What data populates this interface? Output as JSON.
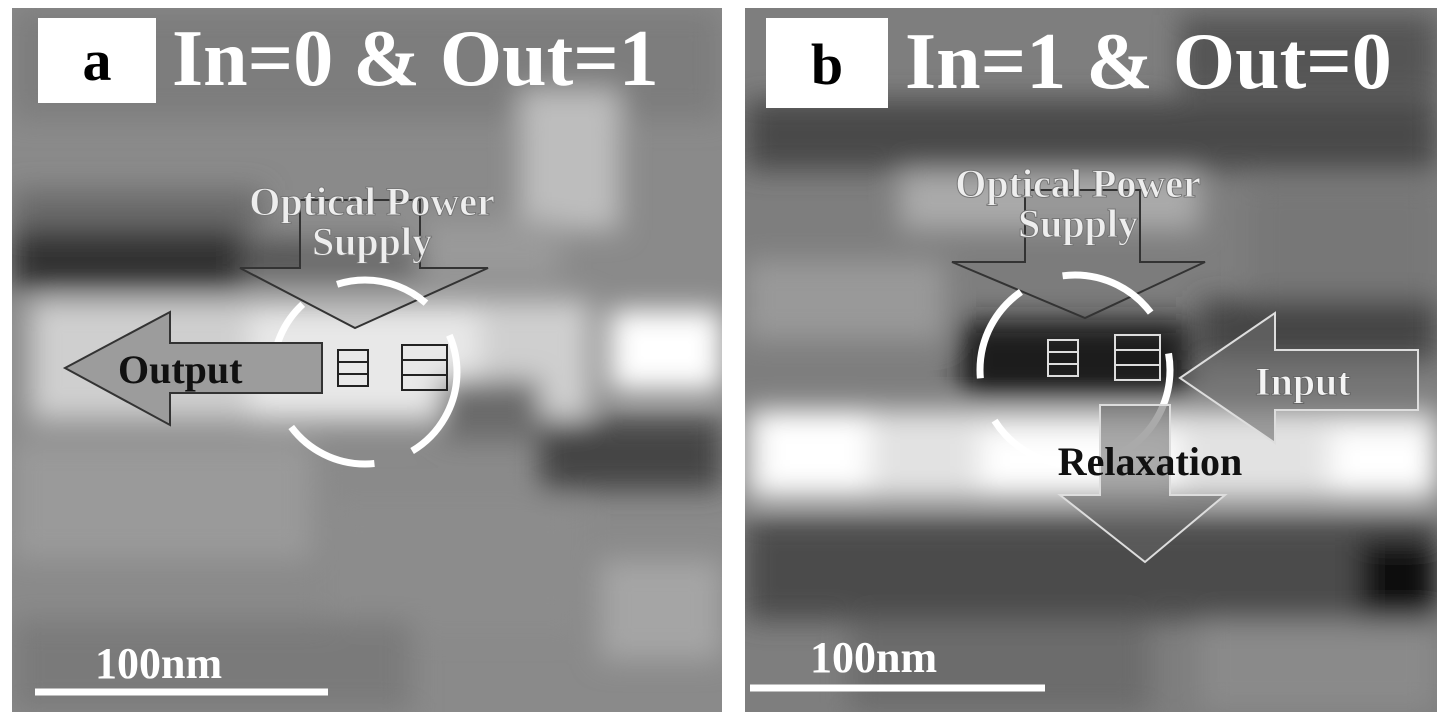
{
  "panels": [
    {
      "label": "a",
      "title": "In=0 & Out=1",
      "power": [
        "Optical Power",
        "Supply"
      ],
      "output": "Output",
      "scale": "100nm"
    },
    {
      "label": "b",
      "title": "In=1 & Out=0",
      "power": [
        "Optical Power",
        "Supply"
      ],
      "input": "Input",
      "relaxation": "Relaxation",
      "scale": "100nm"
    }
  ]
}
